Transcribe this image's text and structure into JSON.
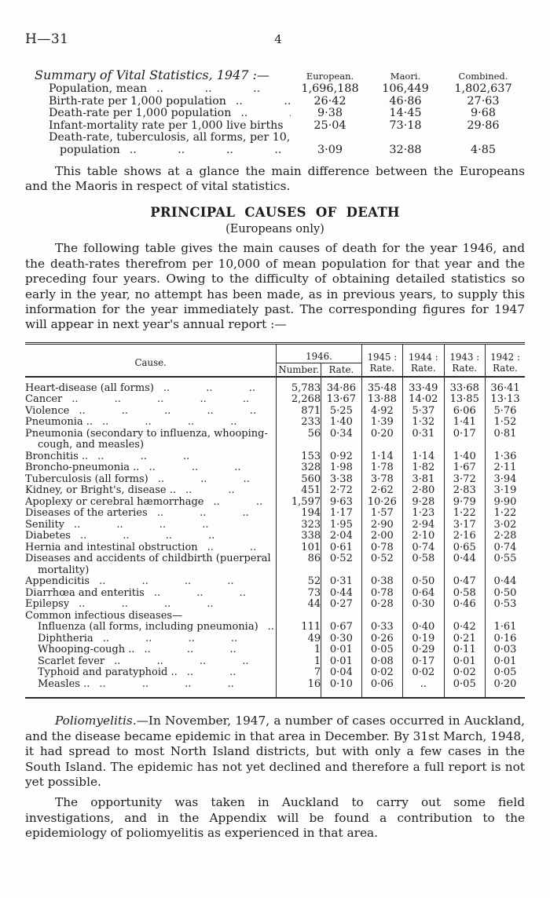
{
  "page": {
    "doc_ref": "H—31",
    "page_number": "4",
    "ink_color": "#1d1c1a",
    "paper_color": "#fdfdfb"
  },
  "summary": {
    "heading": "Summary of Vital Statistics, 1947 :—",
    "columns": [
      "European.",
      "Maori.",
      "Combined."
    ],
    "rows": [
      {
        "label": "Population, mean",
        "dots": ".. .. ..",
        "indent": false,
        "values": [
          "1,696,188",
          "106,449",
          "1,802,637"
        ]
      },
      {
        "label": "Birth-rate per 1,000 population",
        "dots": ".. ..",
        "indent": false,
        "values": [
          "26·42",
          "46·86",
          "27·63"
        ]
      },
      {
        "label": "Death-rate per 1,000 population",
        "dots": ".. ..",
        "indent": false,
        "values": [
          "9·38",
          "14·45",
          "9·68"
        ]
      },
      {
        "label": "Infant-mortality rate per 1,000 live births",
        "dots": "..",
        "indent": false,
        "values": [
          "25·04",
          "73·18",
          "29·86"
        ]
      },
      {
        "label": "Death-rate, tuberculosis, all forms, per 10,000",
        "dots": "",
        "indent": false,
        "values": null
      },
      {
        "label": "population",
        "dots": ".. .. .. ..",
        "indent": true,
        "values": [
          "3·09",
          "32·88",
          "4·85"
        ]
      }
    ]
  },
  "para_intro": "This table shows at a glance the main difference between the Europeans and the Maoris in respect of vital statistics.",
  "section": {
    "title": "PRINCIPAL CAUSES OF DEATH",
    "subtitle": "(Europeans only)"
  },
  "para_table_intro": "The following table gives the main causes of death for the year 1946, and the death-rates therefrom per 10,000 of mean population for that year and the preceding four years.  Owing to the difficulty of obtaining detailed statistics so early in the year, no attempt has been made, as in previous years, to supply this information for the year immediately past.  The corresponding figures for 1947 will appear in next year's annual report :—",
  "death_table": {
    "header": {
      "cause": "Cause.",
      "group_1946": "1946.",
      "sub_number": "Number.",
      "sub_rate": "Rate.",
      "years": [
        {
          "line1": "1945 :",
          "line2": "Rate."
        },
        {
          "line1": "1944 :",
          "line2": "Rate."
        },
        {
          "line1": "1943 :",
          "line2": "Rate."
        },
        {
          "line1": "1942 :",
          "line2": "Rate."
        }
      ]
    },
    "rows": [
      {
        "cause": "Heart-disease (all forms)",
        "dots": ".. .. ..",
        "sub": false,
        "wrap": false,
        "values": [
          "5,783",
          "34·86",
          "35·48",
          "33·49",
          "33·68",
          "36·41"
        ]
      },
      {
        "cause": "Cancer",
        "dots": ".. .. .. .. ..",
        "sub": false,
        "wrap": false,
        "values": [
          "2,268",
          "13·67",
          "13·88",
          "14·02",
          "13·85",
          "13·13"
        ]
      },
      {
        "cause": "Violence",
        "dots": ".. .. .. .. ..",
        "sub": false,
        "wrap": false,
        "values": [
          "871",
          "5·25",
          "4·92",
          "5·37",
          "6·06",
          "5·76"
        ]
      },
      {
        "cause": "Pneumonia ..",
        "dots": ".. .. .. ..",
        "sub": false,
        "wrap": false,
        "values": [
          "233",
          "1·40",
          "1·39",
          "1·32",
          "1·41",
          "1·52"
        ]
      },
      {
        "cause": "Pneumonia (secondary to influenza, whooping-cough, and measles)",
        "dots": "",
        "sub": false,
        "wrap": true,
        "values": [
          "56",
          "0·34",
          "0·20",
          "0·31",
          "0·17",
          "0·81"
        ]
      },
      {
        "cause": "Bronchitis ..",
        "dots": ".. .. ..",
        "sub": false,
        "wrap": false,
        "values": [
          "153",
          "0·92",
          "1·14",
          "1·14",
          "1·40",
          "1·36"
        ]
      },
      {
        "cause": "Broncho-pneumonia ..",
        "dots": ".. .. ..",
        "sub": false,
        "wrap": false,
        "values": [
          "328",
          "1·98",
          "1·78",
          "1·82",
          "1·67",
          "2·11"
        ]
      },
      {
        "cause": "Tuberculosis (all forms)",
        "dots": ".. .. ..",
        "sub": false,
        "wrap": false,
        "values": [
          "560",
          "3·38",
          "3·78",
          "3·81",
          "3·72",
          "3·94"
        ]
      },
      {
        "cause": "Kidney, or Bright's, disease ..",
        "dots": ".. ..",
        "sub": false,
        "wrap": false,
        "values": [
          "451",
          "2·72",
          "2·62",
          "2·80",
          "2·83",
          "3·19"
        ]
      },
      {
        "cause": "Apoplexy or cerebral hæmorrhage",
        "dots": ".. ..",
        "sub": false,
        "wrap": false,
        "values": [
          "1,597",
          "9·63",
          "10·26",
          "9·28",
          "9·79",
          "9·90"
        ]
      },
      {
        "cause": "Diseases of the arteries",
        "dots": ".. .. ..",
        "sub": false,
        "wrap": false,
        "values": [
          "194",
          "1·17",
          "1·57",
          "1·23",
          "1·22",
          "1·22"
        ]
      },
      {
        "cause": "Senility",
        "dots": ".. .. .. ..",
        "sub": false,
        "wrap": false,
        "values": [
          "323",
          "1·95",
          "2·90",
          "2·94",
          "3·17",
          "3·02"
        ]
      },
      {
        "cause": "Diabetes",
        "dots": ".. .. .. ..",
        "sub": false,
        "wrap": false,
        "values": [
          "338",
          "2·04",
          "2·00",
          "2·10",
          "2·16",
          "2·28"
        ]
      },
      {
        "cause": "Hernia and intestinal obstruction",
        "dots": ".. ..",
        "sub": false,
        "wrap": false,
        "values": [
          "101",
          "0·61",
          "0·78",
          "0·74",
          "0·65",
          "0·74"
        ]
      },
      {
        "cause": "Diseases and accidents of childbirth (puerperal mortality)",
        "dots": "",
        "sub": false,
        "wrap": true,
        "values": [
          "86",
          "0·52",
          "0·52",
          "0·58",
          "0·44",
          "0·55"
        ]
      },
      {
        "cause": "Appendicitis",
        "dots": ".. .. .. ..",
        "sub": false,
        "wrap": false,
        "values": [
          "52",
          "0·31",
          "0·38",
          "0·50",
          "0·47",
          "0·44"
        ]
      },
      {
        "cause": "Diarrhœa and enteritis",
        "dots": ".. .. ..",
        "sub": false,
        "wrap": false,
        "values": [
          "73",
          "0·44",
          "0·78",
          "0·64",
          "0·58",
          "0·50"
        ]
      },
      {
        "cause": "Epilepsy",
        "dots": ".. .. .. ..",
        "sub": false,
        "wrap": false,
        "values": [
          "44",
          "0·27",
          "0·28",
          "0·30",
          "0·46",
          "0·53"
        ]
      },
      {
        "cause": "Common infectious diseases—",
        "dots": "",
        "sub": false,
        "wrap": false,
        "values": [
          "",
          "",
          "",
          "",
          "",
          ""
        ]
      },
      {
        "cause": "Influenza (all forms, including pneumonia)",
        "dots": "..",
        "sub": true,
        "wrap": false,
        "values": [
          "111",
          "0·67",
          "0·33",
          "0·40",
          "0·42",
          "1·61"
        ]
      },
      {
        "cause": "Diphtheria",
        "dots": ".. .. .. ..",
        "sub": true,
        "wrap": false,
        "values": [
          "49",
          "0·30",
          "0·26",
          "0·19",
          "0·21",
          "0·16"
        ]
      },
      {
        "cause": "Whooping-cough ..",
        "dots": ".. .. ..",
        "sub": true,
        "wrap": false,
        "values": [
          "1",
          "0·01",
          "0·05",
          "0·29",
          "0·11",
          "0·03"
        ]
      },
      {
        "cause": "Scarlet fever",
        "dots": ".. .. .. ..",
        "sub": true,
        "wrap": false,
        "values": [
          "1",
          "0·01",
          "0·08",
          "0·17",
          "0·01",
          "0·01"
        ]
      },
      {
        "cause": "Typhoid and paratyphoid ..",
        "dots": ".. ..",
        "sub": true,
        "wrap": false,
        "values": [
          "7",
          "0·04",
          "0·02",
          "0·02",
          "0·02",
          "0·05"
        ]
      },
      {
        "cause": "Measles ..",
        "dots": ".. .. .. ..",
        "sub": true,
        "wrap": false,
        "values": [
          "16",
          "0·10",
          "0·06",
          "..",
          "0·05",
          "0·20"
        ]
      }
    ]
  },
  "para_polio": {
    "lead": "Poliomyelitis.",
    "rest": "—In November, 1947, a number of cases occurred in Auckland, and the disease became epidemic in that area in December.  By 31st March, 1948, it had spread to most North Island districts, but with only a few cases in the South Island. The epidemic has not yet declined and therefore a full report is not yet possible."
  },
  "para_appendix": "The opportunity was taken in Auckland to carry out some field investigations, and in the Appendix will be found a contribution to the epidemiology of poliomyelitis as experienced in that area."
}
